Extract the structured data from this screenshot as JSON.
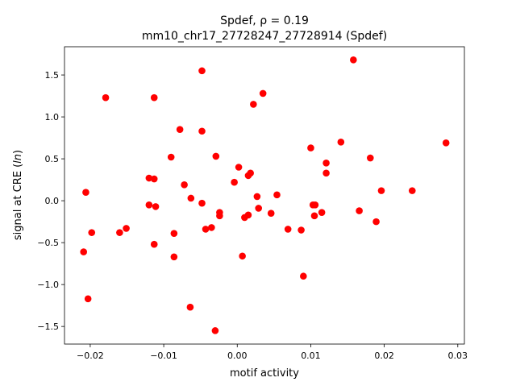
{
  "chart_data": {
    "type": "scatter",
    "title": "Spdef, ρ = 0.19",
    "subtitle": "mm10_chr17_27728247_27728914 (Spdef)",
    "xlabel": "motif activity",
    "ylabel_prefix": "signal at CRE (",
    "ylabel_italic": "ln",
    "ylabel_suffix": ")",
    "xlim": [
      -0.0235,
      0.0309
    ],
    "ylim": [
      -1.71,
      1.837
    ],
    "grid": false,
    "marker_color": "#ff0000",
    "xticks": [
      -0.02,
      -0.01,
      0.0,
      0.01,
      0.02,
      0.03
    ],
    "xtick_labels": [
      "−0.02",
      "−0.01",
      "0.00",
      "0.01",
      "0.02",
      "0.03"
    ],
    "yticks": [
      -1.5,
      -1.0,
      -0.5,
      0.0,
      0.5,
      1.0,
      1.5
    ],
    "ytick_labels": [
      "−1.5",
      "−1.0",
      "−0.5",
      "0.0",
      "0.5",
      "1.0",
      "1.5"
    ],
    "points": [
      [
        0.0158,
        1.68
      ],
      [
        0.0284,
        0.69
      ],
      [
        -0.0179,
        1.23
      ],
      [
        -0.0113,
        1.23
      ],
      [
        -0.0048,
        1.55
      ],
      [
        0.0035,
        1.28
      ],
      [
        0.0022,
        1.15
      ],
      [
        -0.0078,
        0.85
      ],
      [
        -0.0048,
        0.83
      ],
      [
        -0.009,
        0.52
      ],
      [
        -0.0029,
        0.53
      ],
      [
        0.01,
        0.63
      ],
      [
        0.0141,
        0.7
      ],
      [
        0.0181,
        0.51
      ],
      [
        0.0121,
        0.45
      ],
      [
        0.0121,
        0.33
      ],
      [
        0.0002,
        0.4
      ],
      [
        0.0018,
        0.33
      ],
      [
        0.0015,
        0.3
      ],
      [
        -0.0004,
        0.22
      ],
      [
        -0.0072,
        0.19
      ],
      [
        -0.012,
        0.27
      ],
      [
        -0.0113,
        0.26
      ],
      [
        -0.0206,
        0.1
      ],
      [
        -0.0063,
        0.03
      ],
      [
        -0.0048,
        -0.03
      ],
      [
        0.0027,
        0.05
      ],
      [
        0.0054,
        0.07
      ],
      [
        -0.012,
        -0.05
      ],
      [
        -0.0111,
        -0.07
      ],
      [
        0.0103,
        -0.05
      ],
      [
        0.0106,
        -0.05
      ],
      [
        0.0166,
        -0.12
      ],
      [
        0.0196,
        0.12
      ],
      [
        0.0238,
        0.12
      ],
      [
        0.0189,
        -0.25
      ],
      [
        -0.0024,
        -0.14
      ],
      [
        -0.0024,
        -0.18
      ],
      [
        0.0029,
        -0.09
      ],
      [
        0.0015,
        -0.17
      ],
      [
        0.001,
        -0.2
      ],
      [
        0.0046,
        -0.15
      ],
      [
        0.0115,
        -0.14
      ],
      [
        0.0105,
        -0.18
      ],
      [
        -0.0198,
        -0.38
      ],
      [
        -0.0151,
        -0.33
      ],
      [
        -0.016,
        -0.38
      ],
      [
        -0.0035,
        -0.32
      ],
      [
        -0.0043,
        -0.34
      ],
      [
        -0.0086,
        -0.39
      ],
      [
        -0.0113,
        -0.52
      ],
      [
        -0.0209,
        -0.61
      ],
      [
        -0.0086,
        -0.67
      ],
      [
        0.0007,
        -0.66
      ],
      [
        0.0069,
        -0.34
      ],
      [
        0.0087,
        -0.35
      ],
      [
        0.009,
        -0.9
      ],
      [
        -0.0203,
        -1.17
      ],
      [
        -0.0064,
        -1.27
      ],
      [
        -0.003,
        -1.55
      ]
    ]
  }
}
